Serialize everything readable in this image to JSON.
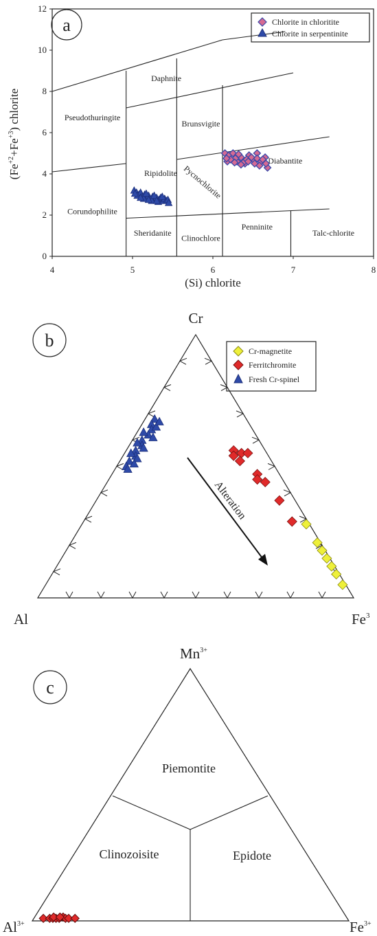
{
  "panels": {
    "a": {
      "letter": "a"
    },
    "b": {
      "letter": "b"
    },
    "c": {
      "letter": "c"
    }
  },
  "chart_data": [
    {
      "type": "scatter",
      "panel": "a",
      "xlabel": "(Si) chlorite",
      "ylabel": "(Fe+2+Fe+3) chlorite",
      "ylabel_parts": {
        "base": "(Fe",
        "sup1": "+2",
        "mid": "+Fe",
        "sup2": "+3",
        "end": ") chlorite"
      },
      "xlim": [
        4,
        8
      ],
      "ylim": [
        0,
        12
      ],
      "x_ticks": [
        "4",
        "5",
        "6",
        "7",
        "8"
      ],
      "y_ticks": [
        "0",
        "2",
        "4",
        "6",
        "8",
        "10",
        "12"
      ],
      "grid": false,
      "legend_position": "top-right",
      "fields": [
        {
          "label": "Daphnite",
          "x": 5.42,
          "y": 8.5
        },
        {
          "label": "Pseudothuringite",
          "x": 4.5,
          "y": 6.6
        },
        {
          "label": "Brunsvigite",
          "x": 5.85,
          "y": 6.3
        },
        {
          "label": "Ripidolite",
          "x": 5.35,
          "y": 3.9
        },
        {
          "label": "Pycnochlorite",
          "x": 5.85,
          "y": 3.5,
          "rotate": 40
        },
        {
          "label": "Diabantite",
          "x": 6.9,
          "y": 4.5
        },
        {
          "label": "Corundophilite",
          "x": 4.5,
          "y": 2.05
        },
        {
          "label": "Sheridanite",
          "x": 5.25,
          "y": 1.0
        },
        {
          "label": "Clinochlore",
          "x": 5.85,
          "y": 0.75
        },
        {
          "label": "Penninite",
          "x": 6.55,
          "y": 1.3
        },
        {
          "label": "Talc-chlorite",
          "x": 7.5,
          "y": 1.0
        }
      ],
      "series": [
        {
          "name": "Chlorite in chloritite",
          "marker": "diamond",
          "fill": "#d66a93",
          "stroke": "#3a48a8",
          "points": [
            [
              6.15,
              5.0
            ],
            [
              6.2,
              4.9
            ],
            [
              6.25,
              5.0
            ],
            [
              6.3,
              4.6
            ],
            [
              6.35,
              4.8
            ],
            [
              6.4,
              4.5
            ],
            [
              6.45,
              4.9
            ],
            [
              6.5,
              4.7
            ],
            [
              6.55,
              5.0
            ],
            [
              6.6,
              4.6
            ],
            [
              6.65,
              4.8
            ],
            [
              6.68,
              4.3
            ],
            [
              6.18,
              4.6
            ],
            [
              6.28,
              4.75
            ],
            [
              6.38,
              4.55
            ],
            [
              6.48,
              4.8
            ],
            [
              6.58,
              4.4
            ],
            [
              6.22,
              4.7
            ],
            [
              6.32,
              4.95
            ],
            [
              6.42,
              4.7
            ],
            [
              6.52,
              4.5
            ],
            [
              6.62,
              4.7
            ],
            [
              6.17,
              4.75
            ],
            [
              6.44,
              4.6
            ],
            [
              6.66,
              4.5
            ],
            [
              6.35,
              4.45
            ],
            [
              6.55,
              4.75
            ],
            [
              6.27,
              4.55
            ]
          ]
        },
        {
          "name": "Chlorite in serpentinite",
          "marker": "triangle",
          "fill": "#2e4aa8",
          "stroke": "#1c2f7a",
          "points": [
            [
              5.02,
              3.2
            ],
            [
              5.05,
              3.1
            ],
            [
              5.08,
              3.0
            ],
            [
              5.1,
              3.1
            ],
            [
              5.12,
              2.9
            ],
            [
              5.15,
              3.0
            ],
            [
              5.18,
              2.85
            ],
            [
              5.2,
              2.95
            ],
            [
              5.22,
              2.8
            ],
            [
              5.25,
              2.9
            ],
            [
              5.28,
              2.75
            ],
            [
              5.3,
              2.85
            ],
            [
              5.33,
              2.75
            ],
            [
              5.35,
              2.85
            ],
            [
              5.38,
              2.7
            ],
            [
              5.4,
              2.8
            ],
            [
              5.42,
              2.7
            ],
            [
              5.06,
              2.95
            ],
            [
              5.14,
              2.8
            ],
            [
              5.24,
              2.7
            ],
            [
              5.32,
              2.65
            ],
            [
              5.44,
              2.75
            ],
            [
              5.03,
              3.05
            ],
            [
              5.17,
              3.05
            ],
            [
              5.27,
              2.95
            ],
            [
              5.37,
              2.9
            ],
            [
              5.1,
              2.85
            ],
            [
              5.2,
              2.75
            ],
            [
              5.45,
              2.6
            ],
            [
              5.3,
              2.7
            ]
          ]
        }
      ]
    },
    {
      "type": "scatter",
      "subtype": "ternary",
      "panel": "b",
      "apices": {
        "top": "Cr",
        "left": "Al",
        "right": "Fe3+"
      },
      "apex_labels_shown": {
        "top": "Cr",
        "left": "Al",
        "right": "Fe"
      },
      "right_apex_sup": "3",
      "legend_position": "top-right",
      "annotation": {
        "label": "Alteration",
        "from": [
          0.5,
          0.45,
          0.05
        ],
        "to": [
          0.26,
          0.67,
          0.07
        ]
      },
      "series": [
        {
          "name": "Cr-magnetite",
          "marker": "diamond",
          "fill": "#eef03a",
          "stroke": "#8a8a10",
          "points_crfeal": [
            [
              0.28,
              0.71,
              0.01
            ],
            [
              0.21,
              0.78,
              0.01
            ],
            [
              0.18,
              0.81,
              0.01
            ],
            [
              0.15,
              0.84,
              0.01
            ],
            [
              0.12,
              0.87,
              0.01
            ],
            [
              0.09,
              0.9,
              0.01
            ],
            [
              0.05,
              0.94,
              0.01
            ]
          ]
        },
        {
          "name": "Ferritchromite",
          "marker": "diamond",
          "fill": "#e02a2a",
          "stroke": "#7a1010",
          "points_crfeal": [
            [
              0.56,
              0.34,
              0.1
            ],
            [
              0.55,
              0.37,
              0.08
            ],
            [
              0.54,
              0.35,
              0.11
            ],
            [
              0.52,
              0.38,
              0.1
            ],
            [
              0.55,
              0.39,
              0.06
            ],
            [
              0.47,
              0.46,
              0.07
            ],
            [
              0.45,
              0.47,
              0.08
            ],
            [
              0.44,
              0.5,
              0.06
            ],
            [
              0.37,
              0.58,
              0.05
            ],
            [
              0.29,
              0.66,
              0.05
            ]
          ]
        },
        {
          "name": "Fresh Cr-spinel",
          "marker": "triangle",
          "fill": "#2e4aa8",
          "stroke": "#1c2f7a",
          "points_crfeal": [
            [
              0.68,
              0.03,
              0.29
            ],
            [
              0.66,
              0.03,
              0.31
            ],
            [
              0.64,
              0.04,
              0.32
            ],
            [
              0.62,
              0.04,
              0.34
            ],
            [
              0.6,
              0.03,
              0.37
            ],
            [
              0.58,
              0.04,
              0.38
            ],
            [
              0.56,
              0.03,
              0.41
            ],
            [
              0.54,
              0.04,
              0.42
            ],
            [
              0.52,
              0.03,
              0.45
            ],
            [
              0.5,
              0.03,
              0.47
            ],
            [
              0.61,
              0.06,
              0.33
            ],
            [
              0.57,
              0.05,
              0.38
            ],
            [
              0.53,
              0.05,
              0.42
            ],
            [
              0.65,
              0.05,
              0.3
            ],
            [
              0.59,
              0.02,
              0.39
            ],
            [
              0.55,
              0.02,
              0.43
            ],
            [
              0.51,
              0.05,
              0.44
            ],
            [
              0.63,
              0.02,
              0.35
            ],
            [
              0.49,
              0.04,
              0.47
            ],
            [
              0.67,
              0.05,
              0.28
            ]
          ]
        }
      ]
    },
    {
      "type": "scatter",
      "subtype": "ternary",
      "panel": "c",
      "apices": {
        "top": "Mn3+",
        "left": "Al3+",
        "right": "Fe3+"
      },
      "apex_labels_shown": {
        "top": "Mn",
        "left": "Al",
        "right": "Fe"
      },
      "apex_sup": "3+",
      "fields": [
        "Piemontite",
        "Clinozoisite",
        "Epidote"
      ],
      "series": [
        {
          "name": "",
          "marker": "diamond",
          "fill": "#e02a2a",
          "stroke": "#5a0a0a",
          "points_mnfeal": [
            [
              0.01,
              0.03,
              0.96
            ],
            [
              0.01,
              0.05,
              0.94
            ],
            [
              0.01,
              0.06,
              0.93
            ],
            [
              0.01,
              0.07,
              0.92
            ],
            [
              0.01,
              0.08,
              0.91
            ],
            [
              0.015,
              0.09,
              0.895
            ],
            [
              0.01,
              0.1,
              0.89
            ],
            [
              0.01,
              0.11,
              0.88
            ],
            [
              0.01,
              0.13,
              0.86
            ],
            [
              0.015,
              0.06,
              0.925
            ],
            [
              0.015,
              0.08,
              0.905
            ]
          ]
        }
      ]
    }
  ]
}
